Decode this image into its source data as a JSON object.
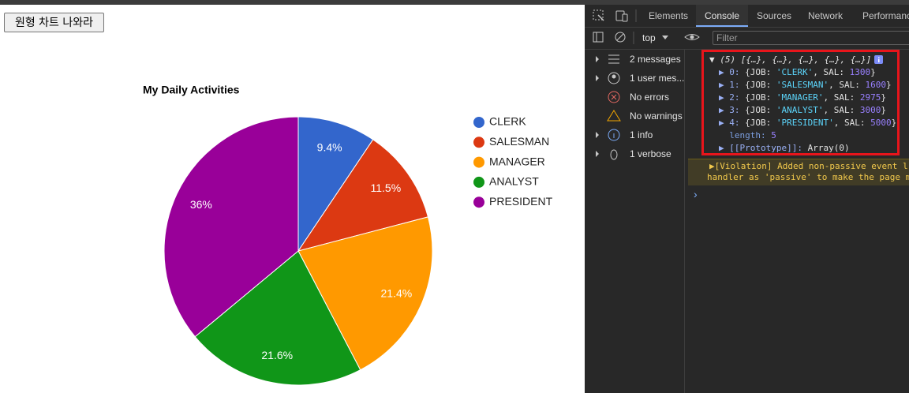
{
  "button": "원형 차트 나와라",
  "chart_data": {
    "type": "pie",
    "title": "My Daily Activities",
    "categories": [
      "CLERK",
      "SALESMAN",
      "MANAGER",
      "ANALYST",
      "PRESIDENT"
    ],
    "values": [
      9.4,
      11.5,
      21.4,
      21.6,
      36
    ],
    "value_labels": [
      "9.4%",
      "11.5%",
      "21.4%",
      "21.6%",
      "36%"
    ],
    "colors": [
      "#3366cc",
      "#dc3912",
      "#ff9900",
      "#109618",
      "#990099"
    ],
    "legend": "right"
  },
  "devtools": {
    "tabs": [
      "Elements",
      "Console",
      "Sources",
      "Network",
      "Performanc"
    ],
    "active_tab": 1,
    "context": "top",
    "filter": "Filter",
    "sidebar": [
      "2 messages",
      "1 user mes...",
      "No errors",
      "No warnings",
      "1 info",
      "1 verbose"
    ],
    "log": [
      [
        {
          "text": "▼ (5) [{…}, {…}, {…}, {…}, {…}]",
          "color": "#e3e3e3"
        }
      ],
      [
        {
          "text": "▶ 0: ",
          "color": "#9ab0f5"
        },
        {
          "text": "{JOB: ",
          "color": "#e3e3e3"
        },
        {
          "text": "'CLERK'",
          "color": "#5cd5fb"
        },
        {
          "text": ", SAL: ",
          "color": "#e3e3e3"
        },
        {
          "text": "1300",
          "color": "#9980ff"
        },
        {
          "text": "}",
          "color": "#e3e3e3"
        }
      ],
      [
        {
          "text": "▶ 1: ",
          "color": "#9ab0f5"
        },
        {
          "text": "{JOB: ",
          "color": "#e3e3e3"
        },
        {
          "text": "'SALESMAN'",
          "color": "#5cd5fb"
        },
        {
          "text": ", SAL: ",
          "color": "#e3e3e3"
        },
        {
          "text": "1600",
          "color": "#9980ff"
        },
        {
          "text": "}",
          "color": "#e3e3e3"
        }
      ],
      [
        {
          "text": "▶ 2: ",
          "color": "#9ab0f5"
        },
        {
          "text": "{JOB: ",
          "color": "#e3e3e3"
        },
        {
          "text": "'MANAGER'",
          "color": "#5cd5fb"
        },
        {
          "text": ", SAL: ",
          "color": "#e3e3e3"
        },
        {
          "text": "2975",
          "color": "#9980ff"
        },
        {
          "text": "}",
          "color": "#e3e3e3"
        }
      ],
      [
        {
          "text": "▶ 3: ",
          "color": "#9ab0f5"
        },
        {
          "text": "{JOB: ",
          "color": "#e3e3e3"
        },
        {
          "text": "'ANALYST'",
          "color": "#5cd5fb"
        },
        {
          "text": ", SAL: ",
          "color": "#e3e3e3"
        },
        {
          "text": "3000",
          "color": "#9980ff"
        },
        {
          "text": "}",
          "color": "#e3e3e3"
        }
      ],
      [
        {
          "text": "▶ 4: ",
          "color": "#9ab0f5"
        },
        {
          "text": "{JOB: ",
          "color": "#e3e3e3"
        },
        {
          "text": "'PRESIDENT'",
          "color": "#5cd5fb"
        },
        {
          "text": ", SAL: ",
          "color": "#e3e3e3"
        },
        {
          "text": "5000",
          "color": "#9980ff"
        },
        {
          "text": "}",
          "color": "#e3e3e3"
        }
      ],
      [
        {
          "text": "  length: ",
          "color": "#7c9fe0"
        },
        {
          "text": "5",
          "color": "#9980ff"
        }
      ],
      [
        {
          "text": "▶ [[Prototype]]: ",
          "color": "#9ab0f5"
        },
        {
          "text": "Array(0)",
          "color": "#e3e3e3"
        }
      ]
    ],
    "violation": [
      "▶[Violation] Added non-passive event l",
      "handler as 'passive' to make the page m"
    ],
    "prompt": "›"
  }
}
